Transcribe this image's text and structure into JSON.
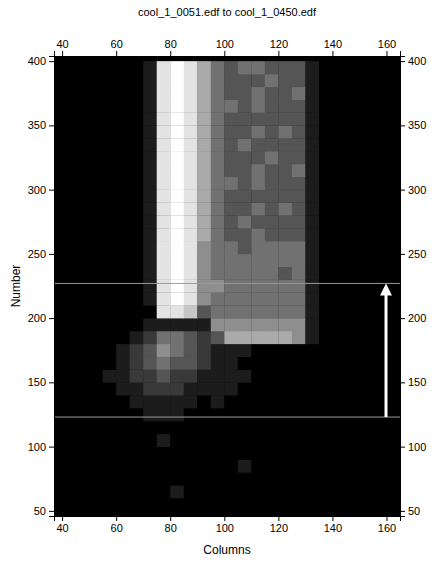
{
  "chart_data": {
    "type": "heatmap",
    "title": "cool_1_0051.edf to cool_1_0450.edf",
    "x_label": "Columns",
    "y_label": "Number",
    "xlim": [
      37,
      165
    ],
    "ylim": [
      46,
      404
    ],
    "xticks": [
      40,
      60,
      80,
      100,
      120,
      140,
      160
    ],
    "yticks": [
      50,
      100,
      150,
      200,
      250,
      300,
      350,
      400
    ],
    "hlines": [
      123,
      227
    ],
    "x": [
      42.5,
      47.5,
      52.5,
      57.5,
      62.5,
      67.5,
      72.5,
      77.5,
      82.5,
      87.5,
      92.5,
      97.5,
      102.5,
      107.5,
      112.5,
      117.5,
      122.5,
      127.5,
      132.5,
      137.5,
      142.5,
      147.5,
      152.5,
      157.5,
      162.5
    ],
    "y": [
      55,
      65,
      75,
      85,
      95,
      105,
      115,
      125,
      135,
      145,
      155,
      165,
      175,
      185,
      195,
      205,
      215,
      225,
      235,
      245,
      255,
      265,
      275,
      285,
      295,
      305,
      315,
      325,
      335,
      345,
      355,
      365,
      375,
      385,
      395
    ],
    "z": [
      [
        0,
        0,
        0,
        0,
        0,
        0,
        0,
        0,
        0,
        0,
        0,
        0,
        0,
        0,
        0,
        0,
        0,
        0,
        0,
        0,
        0,
        0,
        0,
        0,
        0
      ],
      [
        0,
        0,
        0,
        0,
        0,
        0,
        0,
        0,
        1,
        0,
        0,
        0,
        0,
        0,
        0,
        0,
        0,
        0,
        0,
        0,
        0,
        0,
        0,
        0,
        0
      ],
      [
        0,
        0,
        0,
        0,
        0,
        0,
        0,
        0,
        0,
        0,
        0,
        0,
        0,
        0,
        0,
        0,
        0,
        0,
        0,
        0,
        0,
        0,
        0,
        0,
        0
      ],
      [
        0,
        0,
        0,
        0,
        0,
        0,
        0,
        0,
        0,
        0,
        0,
        0,
        0,
        1,
        0,
        0,
        0,
        0,
        0,
        0,
        0,
        0,
        0,
        0,
        0
      ],
      [
        0,
        0,
        0,
        0,
        0,
        0,
        0,
        0,
        0,
        0,
        0,
        0,
        0,
        0,
        0,
        0,
        0,
        0,
        0,
        0,
        0,
        0,
        0,
        0,
        0
      ],
      [
        0,
        0,
        0,
        0,
        0,
        0,
        0,
        1,
        0,
        0,
        0,
        0,
        0,
        0,
        0,
        0,
        0,
        0,
        0,
        0,
        0,
        0,
        0,
        0,
        0
      ],
      [
        0,
        0,
        0,
        0,
        0,
        0,
        0,
        0,
        0,
        0,
        0,
        0,
        0,
        0,
        0,
        0,
        0,
        0,
        0,
        0,
        0,
        0,
        0,
        0,
        0
      ],
      [
        0,
        0,
        0,
        0,
        0,
        0,
        1,
        1,
        1,
        0,
        0,
        0,
        0,
        0,
        0,
        0,
        0,
        0,
        0,
        0,
        0,
        0,
        0,
        0,
        0
      ],
      [
        0,
        0,
        0,
        0,
        0,
        1,
        1,
        1,
        1,
        1,
        0,
        1,
        0,
        0,
        0,
        0,
        0,
        0,
        0,
        0,
        0,
        0,
        0,
        0,
        0
      ],
      [
        0,
        0,
        0,
        0,
        1,
        1,
        2,
        2,
        2,
        1,
        1,
        1,
        1,
        0,
        0,
        0,
        0,
        0,
        0,
        0,
        0,
        0,
        0,
        0,
        0
      ],
      [
        0,
        0,
        0,
        1,
        1,
        2,
        2,
        3,
        2,
        2,
        1,
        1,
        1,
        1,
        0,
        0,
        0,
        0,
        0,
        0,
        0,
        0,
        0,
        0,
        0
      ],
      [
        0,
        0,
        0,
        0,
        1,
        2,
        3,
        4,
        3,
        3,
        2,
        1,
        1,
        0,
        0,
        0,
        0,
        0,
        0,
        0,
        0,
        0,
        0,
        0,
        0
      ],
      [
        0,
        0,
        0,
        0,
        1,
        2,
        3,
        5,
        4,
        3,
        2,
        1,
        1,
        1,
        0,
        0,
        0,
        0,
        0,
        0,
        0,
        0,
        0,
        0,
        0
      ],
      [
        0,
        0,
        0,
        0,
        0,
        1,
        2,
        4,
        4,
        3,
        2,
        3,
        6,
        6,
        6,
        6,
        6,
        5,
        1,
        0,
        0,
        0,
        0,
        0,
        0
      ],
      [
        0,
        0,
        0,
        0,
        0,
        0,
        1,
        1,
        1,
        1,
        1,
        5,
        5,
        5,
        5,
        5,
        5,
        5,
        1,
        0,
        0,
        0,
        0,
        0,
        0
      ],
      [
        0,
        0,
        0,
        0,
        0,
        0,
        0,
        8,
        8,
        7,
        3,
        4,
        4,
        4,
        4,
        4,
        4,
        4,
        1,
        0,
        0,
        0,
        0,
        0,
        0
      ],
      [
        0,
        0,
        0,
        0,
        0,
        0,
        1,
        8,
        9,
        8,
        5,
        4,
        4,
        4,
        4,
        4,
        4,
        4,
        1,
        0,
        0,
        0,
        0,
        0,
        0
      ],
      [
        0,
        0,
        0,
        0,
        0,
        0,
        1,
        8,
        9,
        8,
        5,
        5,
        4,
        4,
        4,
        4,
        4,
        4,
        1,
        0,
        0,
        0,
        0,
        0,
        0
      ],
      [
        0,
        0,
        0,
        0,
        0,
        0,
        1,
        8,
        9,
        8,
        5,
        4,
        4,
        4,
        4,
        4,
        3,
        4,
        1,
        0,
        0,
        0,
        0,
        0,
        0
      ],
      [
        0,
        0,
        0,
        0,
        0,
        0,
        1,
        8,
        9,
        8,
        5,
        4,
        4,
        4,
        4,
        4,
        4,
        4,
        1,
        0,
        0,
        0,
        0,
        0,
        0
      ],
      [
        0,
        0,
        0,
        0,
        0,
        0,
        1,
        8,
        9,
        8,
        5,
        4,
        4,
        3,
        4,
        4,
        4,
        4,
        1,
        0,
        0,
        0,
        0,
        0,
        0
      ],
      [
        0,
        0,
        0,
        0,
        0,
        0,
        1,
        8,
        9,
        8,
        6,
        4,
        3,
        3,
        4,
        3,
        3,
        3,
        1,
        0,
        0,
        0,
        0,
        0,
        0
      ],
      [
        0,
        0,
        0,
        0,
        0,
        0,
        1,
        8,
        9,
        8,
        6,
        4,
        3,
        4,
        3,
        3,
        3,
        3,
        1,
        0,
        0,
        0,
        0,
        0,
        0
      ],
      [
        0,
        0,
        0,
        0,
        0,
        0,
        1,
        8,
        9,
        8,
        6,
        4,
        3,
        3,
        4,
        3,
        4,
        3,
        1,
        0,
        0,
        0,
        0,
        0,
        0
      ],
      [
        0,
        0,
        0,
        0,
        0,
        0,
        1,
        8,
        9,
        8,
        6,
        4,
        3,
        3,
        3,
        3,
        3,
        3,
        1,
        0,
        0,
        0,
        0,
        0,
        0
      ],
      [
        0,
        0,
        0,
        0,
        0,
        0,
        1,
        8,
        9,
        8,
        6,
        4,
        4,
        3,
        4,
        3,
        3,
        3,
        1,
        0,
        0,
        0,
        0,
        0,
        0
      ],
      [
        0,
        0,
        0,
        0,
        0,
        0,
        1,
        8,
        9,
        8,
        6,
        4,
        3,
        3,
        4,
        3,
        3,
        4,
        1,
        0,
        0,
        0,
        0,
        0,
        0
      ],
      [
        0,
        0,
        0,
        0,
        0,
        0,
        1,
        8,
        9,
        8,
        6,
        4,
        3,
        3,
        3,
        4,
        3,
        3,
        1,
        0,
        0,
        0,
        0,
        0,
        0
      ],
      [
        0,
        0,
        0,
        0,
        0,
        0,
        1,
        8,
        9,
        8,
        6,
        4,
        3,
        4,
        3,
        3,
        3,
        3,
        1,
        0,
        0,
        0,
        0,
        0,
        0
      ],
      [
        0,
        0,
        0,
        0,
        0,
        0,
        1,
        8,
        9,
        8,
        6,
        4,
        3,
        3,
        4,
        3,
        4,
        3,
        1,
        0,
        0,
        0,
        0,
        0,
        0
      ],
      [
        0,
        0,
        0,
        0,
        0,
        0,
        1,
        8,
        9,
        8,
        6,
        4,
        3,
        3,
        3,
        3,
        3,
        3,
        1,
        0,
        0,
        0,
        0,
        0,
        0
      ],
      [
        0,
        0,
        0,
        0,
        0,
        0,
        1,
        8,
        9,
        8,
        6,
        4,
        4,
        3,
        4,
        3,
        3,
        3,
        1,
        0,
        0,
        0,
        0,
        0,
        0
      ],
      [
        0,
        0,
        0,
        0,
        0,
        0,
        1,
        8,
        9,
        8,
        6,
        4,
        3,
        3,
        4,
        3,
        3,
        4,
        1,
        0,
        0,
        0,
        0,
        0,
        0
      ],
      [
        0,
        0,
        0,
        0,
        0,
        0,
        1,
        8,
        9,
        8,
        6,
        4,
        3,
        3,
        3,
        4,
        3,
        3,
        1,
        0,
        0,
        0,
        0,
        0,
        0
      ],
      [
        0,
        0,
        0,
        0,
        0,
        0,
        1,
        8,
        9,
        8,
        6,
        4,
        3,
        4,
        4,
        3,
        3,
        3,
        1,
        0,
        0,
        0,
        0,
        0,
        0
      ]
    ]
  }
}
